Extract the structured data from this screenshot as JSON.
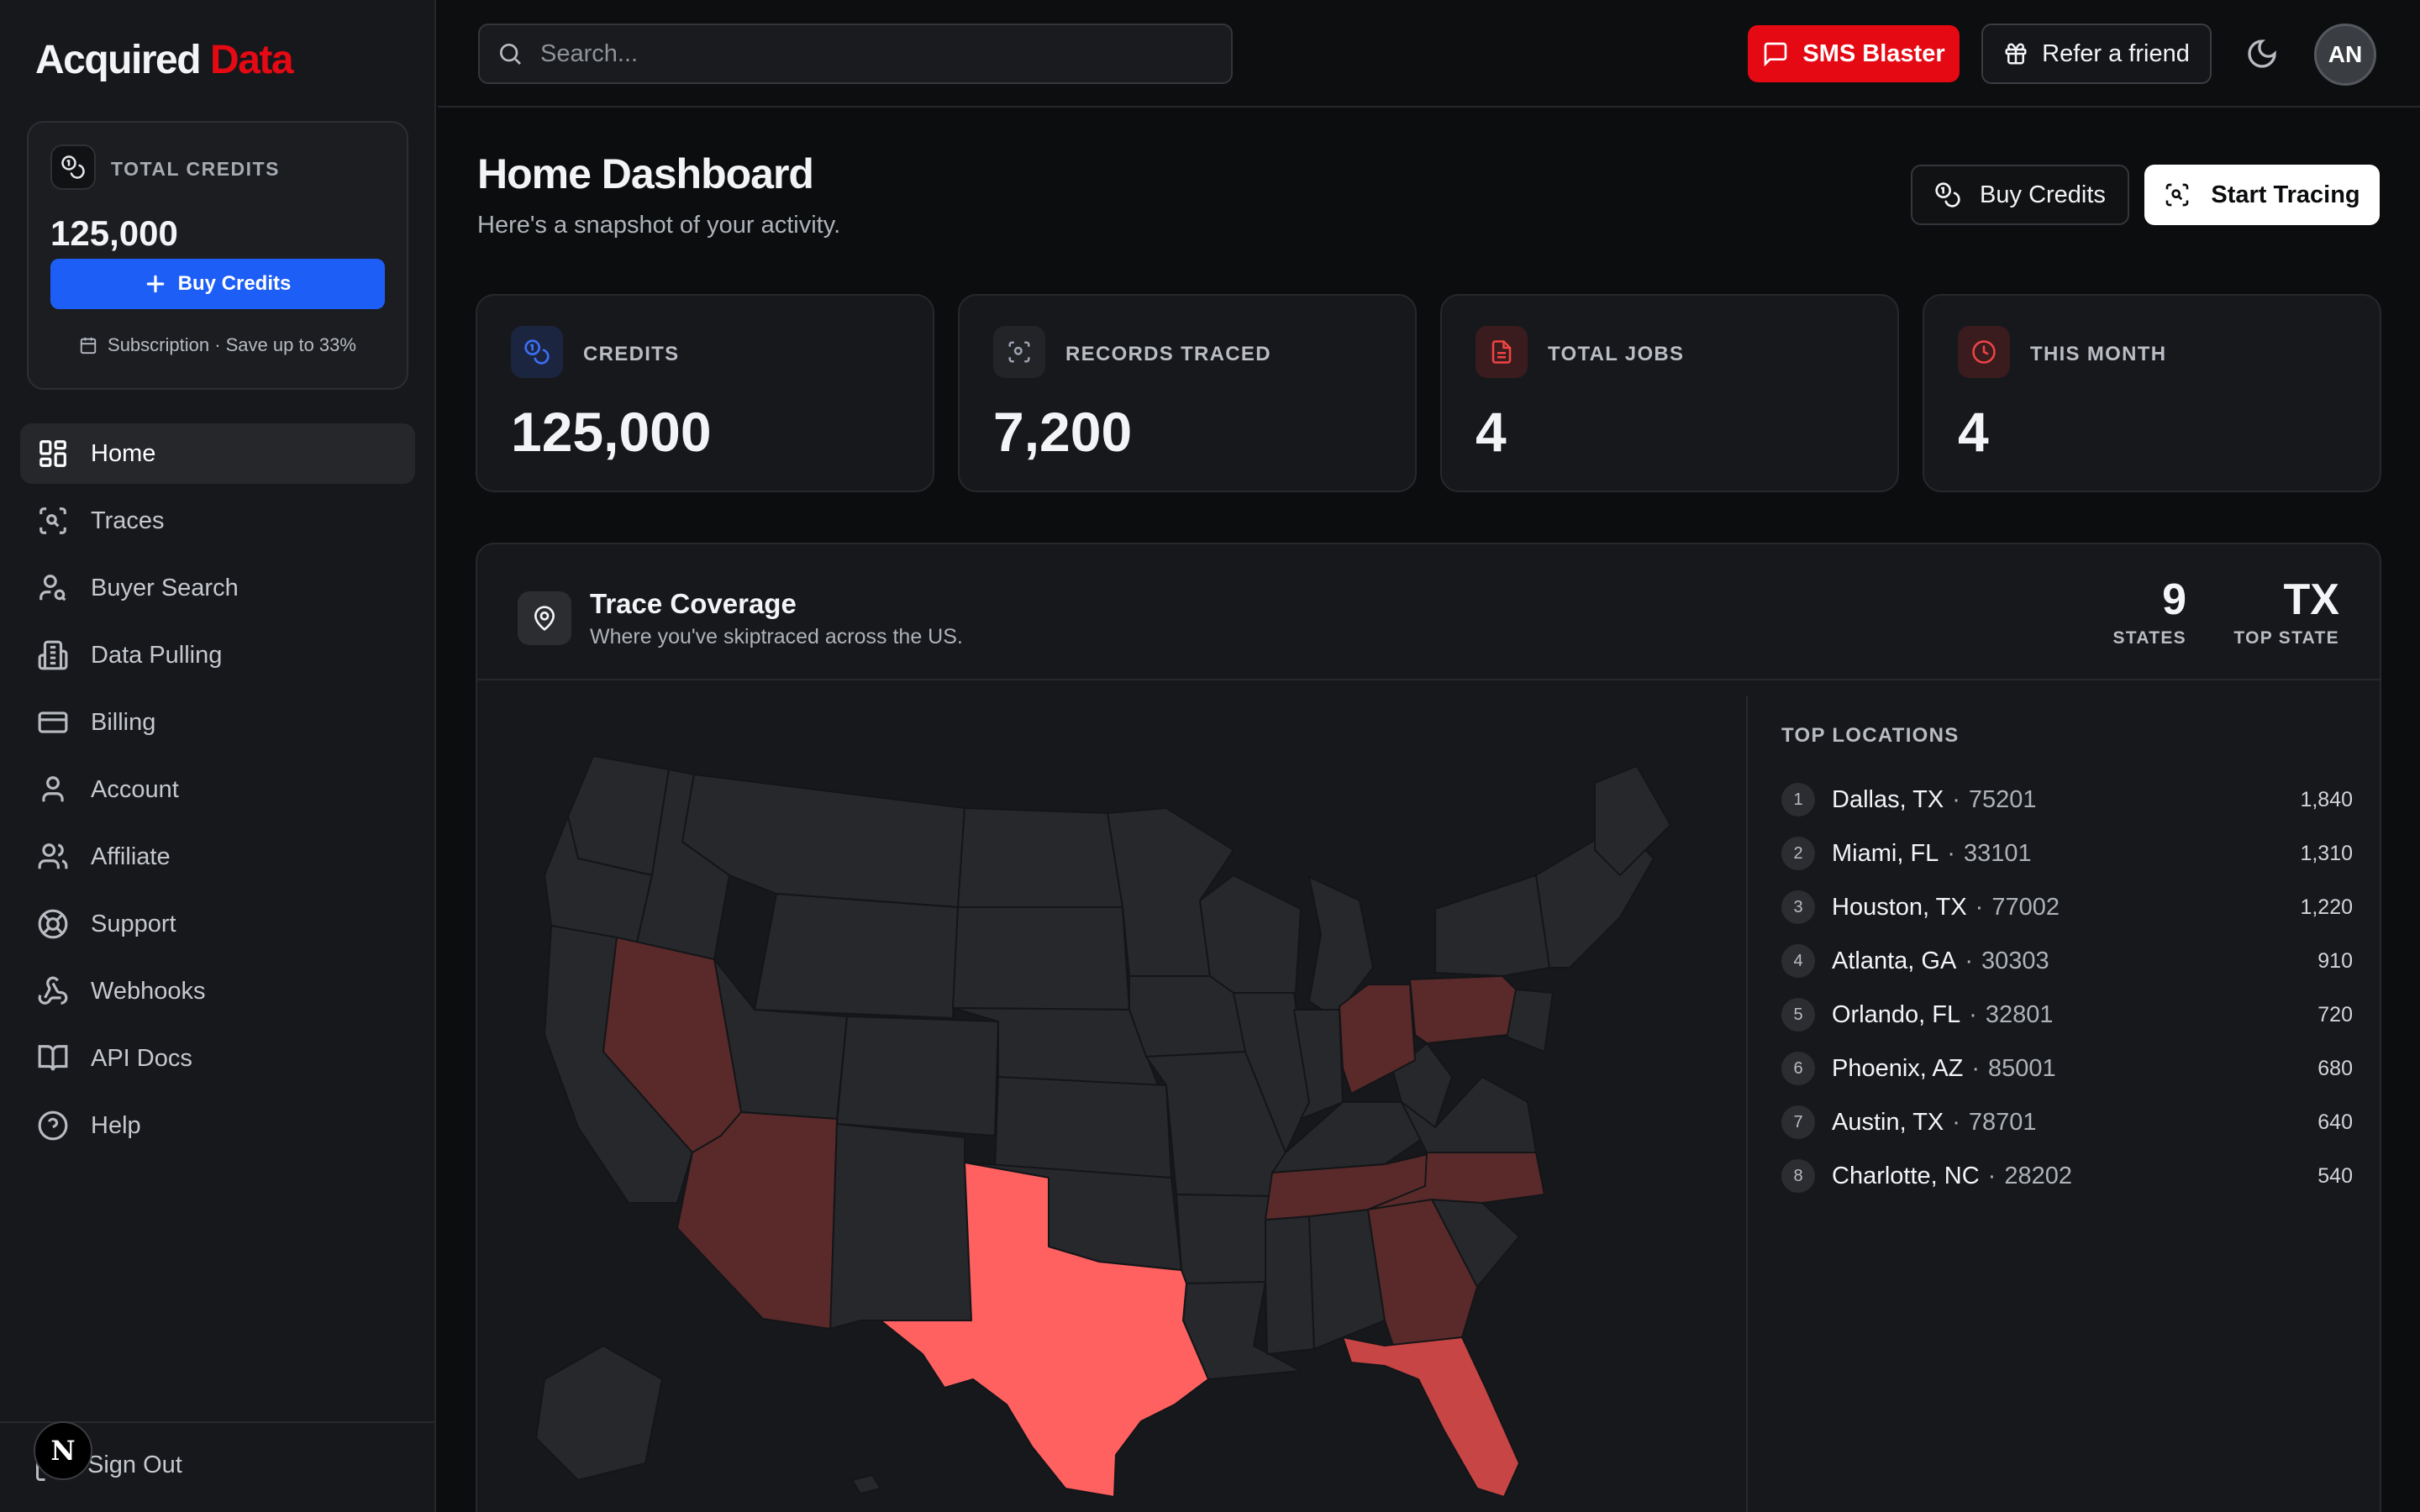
{
  "app": {
    "brand_main": "Acquired",
    "brand_accent": "Data",
    "accent_color": "#e50914",
    "primary_blue": "#1d5ef6"
  },
  "sidebar": {
    "credits_card": {
      "label": "TOTAL CREDITS",
      "value": "125,000",
      "button_label": "Buy Credits",
      "subscription_note": "Subscription · Save up to 33%"
    },
    "items": [
      {
        "label": "Home",
        "icon": "grid-icon",
        "active": true
      },
      {
        "label": "Traces",
        "icon": "scan-icon"
      },
      {
        "label": "Buyer Search",
        "icon": "user-search-icon"
      },
      {
        "label": "Data Pulling",
        "icon": "building-icon"
      },
      {
        "label": "Billing",
        "icon": "credit-card-icon"
      },
      {
        "label": "Account",
        "icon": "user-icon"
      },
      {
        "label": "Affiliate",
        "icon": "users-icon"
      },
      {
        "label": "Support",
        "icon": "lifebuoy-icon"
      },
      {
        "label": "Webhooks",
        "icon": "webhook-icon"
      },
      {
        "label": "API Docs",
        "icon": "book-icon"
      },
      {
        "label": "Help",
        "icon": "help-circle-icon"
      }
    ],
    "sign_out_label": "Sign Out",
    "next_badge": "N"
  },
  "header": {
    "search_placeholder": "Search...",
    "sms_label": "SMS Blaster",
    "refer_label": "Refer a friend",
    "avatar_initials": "AN"
  },
  "page": {
    "title": "Home Dashboard",
    "subtitle": "Here's a snapshot of your activity.",
    "buy_credits_label": "Buy Credits",
    "start_tracing_label": "Start Tracing"
  },
  "stats": [
    {
      "label": "CREDITS",
      "value": "125,000",
      "icon": "coins-icon",
      "color": "#3b6ff5"
    },
    {
      "label": "RECORDS TRACED",
      "value": "7,200",
      "icon": "scan-icon",
      "color": "#9ca3af"
    },
    {
      "label": "TOTAL JOBS",
      "value": "4",
      "icon": "file-icon",
      "color": "#ef4444"
    },
    {
      "label": "THIS MONTH",
      "value": "4",
      "icon": "clock-icon",
      "color": "#ef4444"
    }
  ],
  "coverage": {
    "title": "Trace Coverage",
    "subtitle": "Where you've skiptraced across the US.",
    "states_value": "9",
    "states_label": "STATES",
    "top_state_value": "TX",
    "top_state_label": "TOP STATE",
    "heat_colors": {
      "high": "#ff6161",
      "mid": "#c74545",
      "low": "#5a2a2a",
      "none": "#26282b"
    },
    "states": [
      {
        "code": "TX",
        "level": "high"
      },
      {
        "code": "FL",
        "level": "mid"
      },
      {
        "code": "GA",
        "level": "low"
      },
      {
        "code": "NV",
        "level": "low"
      },
      {
        "code": "AZ",
        "level": "low"
      },
      {
        "code": "OH",
        "level": "low"
      },
      {
        "code": "PA",
        "level": "low"
      },
      {
        "code": "TN",
        "level": "low"
      },
      {
        "code": "NC",
        "level": "low"
      }
    ],
    "top_locations_title": "TOP LOCATIONS",
    "locations": [
      {
        "rank": "1",
        "city": "Dallas, TX",
        "zip": "75201",
        "count": "1,840"
      },
      {
        "rank": "2",
        "city": "Miami, FL",
        "zip": "33101",
        "count": "1,310"
      },
      {
        "rank": "3",
        "city": "Houston, TX",
        "zip": "77002",
        "count": "1,220"
      },
      {
        "rank": "4",
        "city": "Atlanta, GA",
        "zip": "30303",
        "count": "910"
      },
      {
        "rank": "5",
        "city": "Orlando, FL",
        "zip": "32801",
        "count": "720"
      },
      {
        "rank": "6",
        "city": "Phoenix, AZ",
        "zip": "85001",
        "count": "680"
      },
      {
        "rank": "7",
        "city": "Austin, TX",
        "zip": "78701",
        "count": "640"
      },
      {
        "rank": "8",
        "city": "Charlotte, NC",
        "zip": "28202",
        "count": "540"
      }
    ]
  }
}
